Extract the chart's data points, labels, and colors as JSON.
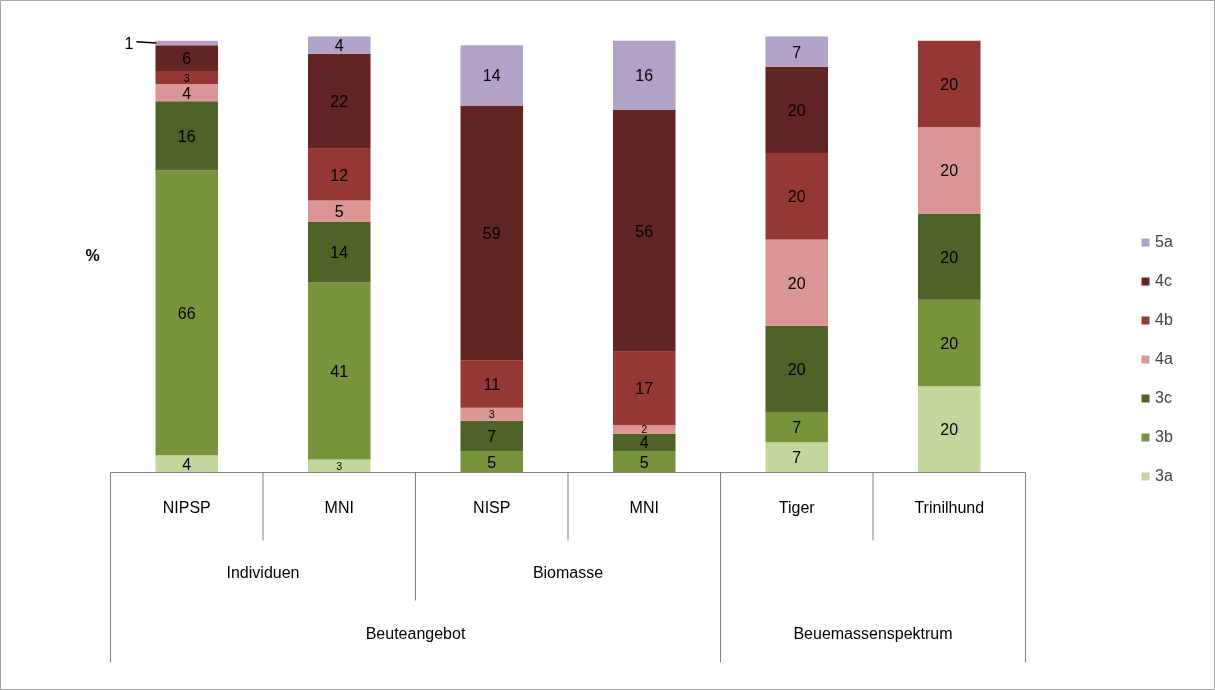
{
  "chart_data": {
    "type": "bar",
    "stacked": true,
    "data_labels": true,
    "ylabel": "%",
    "legend": "right",
    "categories": [
      "NIPSP",
      "MNI",
      "NISP",
      "MNI",
      "Tiger",
      "Trinilhund"
    ],
    "series": [
      {
        "name": "3a",
        "color": "#c3d69b",
        "values": [
          4,
          3,
          null,
          null,
          7,
          20
        ]
      },
      {
        "name": "3b",
        "color": "#77933c",
        "values": [
          66,
          41,
          5,
          5,
          7,
          20
        ]
      },
      {
        "name": "3c",
        "color": "#4f6228",
        "values": [
          16,
          14,
          7,
          4,
          20,
          20
        ]
      },
      {
        "name": "4a",
        "color": "#d99694",
        "values": [
          4,
          5,
          3,
          2,
          20,
          20
        ]
      },
      {
        "name": "4b",
        "color": "#953735",
        "values": [
          3,
          12,
          11,
          17,
          20,
          20
        ]
      },
      {
        "name": "4c",
        "color": "#632523",
        "values": [
          6,
          22,
          59,
          56,
          20,
          null
        ]
      },
      {
        "name": "5a",
        "color": "#b3a2c7",
        "values": [
          1,
          4,
          14,
          16,
          7,
          null
        ]
      }
    ],
    "annotations": [
      "Individuen",
      "Biomasse",
      "Beuteangebot",
      "Beuemassenspektrum"
    ]
  }
}
